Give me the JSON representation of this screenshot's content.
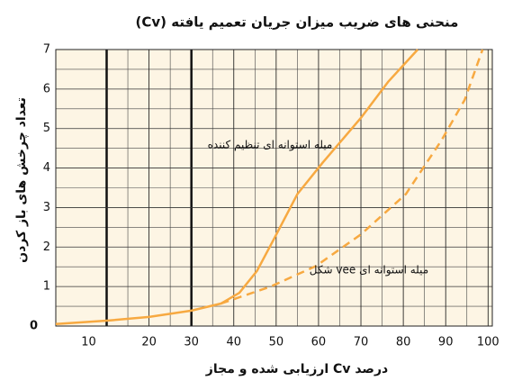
{
  "chart_data": {
    "type": "line",
    "title": "منحنی های ضریب میزان جریان تعمیم یافته (Cv)",
    "x_label": "درصد Cv ارزیابی شده و مجاز",
    "y_label": "تعداد چرخش های باز کردن",
    "xlim": [
      -2,
      101
    ],
    "ylim": [
      0,
      7
    ],
    "xticks": [
      10,
      20,
      30,
      40,
      50,
      60,
      70,
      80,
      90,
      100
    ],
    "yticks": [
      0,
      1,
      2,
      3,
      4,
      5,
      6,
      7
    ],
    "grid": true,
    "background": "#fdf5e4",
    "series": [
      {
        "name": "میله استوانه ای تنظیم کننده",
        "color": "#f7a941",
        "line_style": "solid",
        "x": [
          -2,
          10.4,
          20,
          30,
          37,
          41.3,
          45.5,
          49.8,
          55,
          61,
          70,
          76.4,
          83.4
        ],
        "values": [
          0.05,
          0.14,
          0.23,
          0.39,
          0.57,
          0.84,
          1.4,
          2.27,
          3.34,
          4.14,
          5.27,
          6.18,
          7
        ]
      },
      {
        "name": "میله استوانه ای vee شکل",
        "color": "#f7a941",
        "line_style": "dashed",
        "x": [
          37,
          48.7,
          59.4,
          70,
          80.6,
          89,
          94.5,
          98.7
        ],
        "values": [
          0.57,
          1.0,
          1.52,
          2.32,
          3.34,
          4.7,
          5.73,
          7
        ]
      }
    ]
  }
}
